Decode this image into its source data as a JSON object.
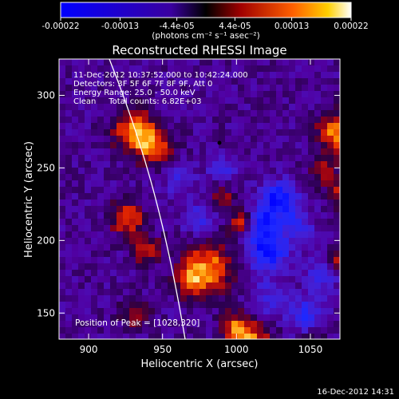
{
  "colorbar": {
    "tick_labels": [
      "-0.00022",
      "-0.00013",
      "-4.4e-05",
      "4.4e-05",
      "0.00013",
      "0.00022"
    ],
    "tick_values": [
      -0.00022,
      -0.00013,
      -4.4e-05,
      4.4e-05,
      0.00013,
      0.00022
    ],
    "range": [
      -0.00022,
      0.00022
    ],
    "units": "(photons cm⁻² s⁻¹ asec⁻²)"
  },
  "title": "Reconstructed RHESSI Image",
  "annotations": [
    "11-Dec-2012 10:37:52.000 to 10:42:24.000",
    "Detectors: 3F 5F 6F 7F 8F 9F, Att 0",
    "Energy Range: 25.0 - 50.0 keV",
    "Clean     Total counts: 6.82E+03"
  ],
  "peak_label": "Position of Peak = [1028,320]",
  "axes": {
    "xlabel": "Heliocentric X (arcsec)",
    "ylabel": "Heliocentric Y (arcsec)",
    "xlim": [
      880,
      1070
    ],
    "ylim": [
      132,
      325
    ],
    "xticks": [
      900,
      950,
      1000,
      1050
    ],
    "yticks": [
      150,
      200,
      250,
      300
    ]
  },
  "timestamp": "16-Dec-2012 14:31"
}
